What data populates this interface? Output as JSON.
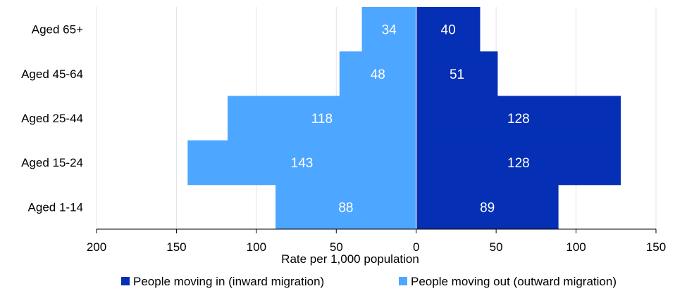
{
  "chart_data": {
    "type": "bar",
    "orientation": "horizontal",
    "layout": "back-to-back",
    "categories": [
      "Aged 65+",
      "Aged 45-64",
      "Aged 25-44",
      "Aged 15-24",
      "Aged 1-14"
    ],
    "series": [
      {
        "name": "People moving in (inward migration)",
        "values": [
          40,
          51,
          128,
          128,
          89
        ],
        "color": "#0530b5",
        "direction": "right"
      },
      {
        "name": "People moving out (outward migration)",
        "values": [
          34,
          48,
          118,
          143,
          88
        ],
        "color": "#4da6ff",
        "direction": "left"
      }
    ],
    "xlabel": "Rate per 1,000 population",
    "ylabel": "",
    "xlim": [
      -200,
      150
    ],
    "xticks": [
      -200,
      -150,
      -100,
      -50,
      0,
      50,
      100,
      150
    ],
    "xtick_labels": [
      "200",
      "150",
      "100",
      "50",
      "0",
      "50",
      "100",
      "150"
    ],
    "grid": "vertical",
    "legend_position": "bottom"
  }
}
